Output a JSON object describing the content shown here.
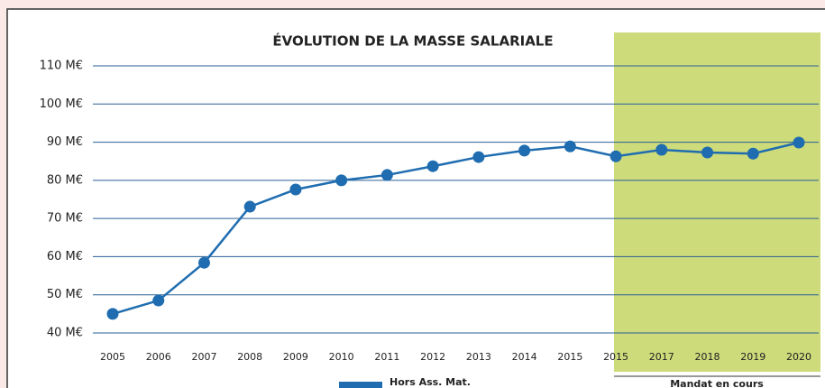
{
  "chart_data": {
    "type": "line",
    "title": "ÉVOLUTION DE LA MASSE SALARIALE",
    "categories": [
      "2005",
      "2006",
      "2007",
      "2008",
      "2009",
      "2010",
      "2011",
      "2012",
      "2013",
      "2014",
      "2015",
      "2015",
      "2017",
      "2018",
      "2019",
      "2020"
    ],
    "series": [
      {
        "name": "Hors Ass. Mat.",
        "color": "#1f6db0",
        "values": [
          45.0,
          48.5,
          58.4,
          73.1,
          77.6,
          80.0,
          81.4,
          83.7,
          86.1,
          87.8,
          88.9,
          86.3,
          88.0,
          87.3,
          87.0,
          89.9
        ]
      }
    ],
    "ylim": [
      40,
      110
    ],
    "yticks": [
      {
        "value": 40,
        "label": "40 M€"
      },
      {
        "value": 50,
        "label": "50 M€"
      },
      {
        "value": 60,
        "label": "60 M€"
      },
      {
        "value": 70,
        "label": "70 M€"
      },
      {
        "value": 80,
        "label": "80 M€"
      },
      {
        "value": 90,
        "label": "90 M€"
      },
      {
        "value": 100,
        "label": "100 M€"
      },
      {
        "value": 110,
        "label": "110 M€"
      }
    ],
    "grid": true,
    "annotations": [
      "Mandat en cours"
    ]
  }
}
